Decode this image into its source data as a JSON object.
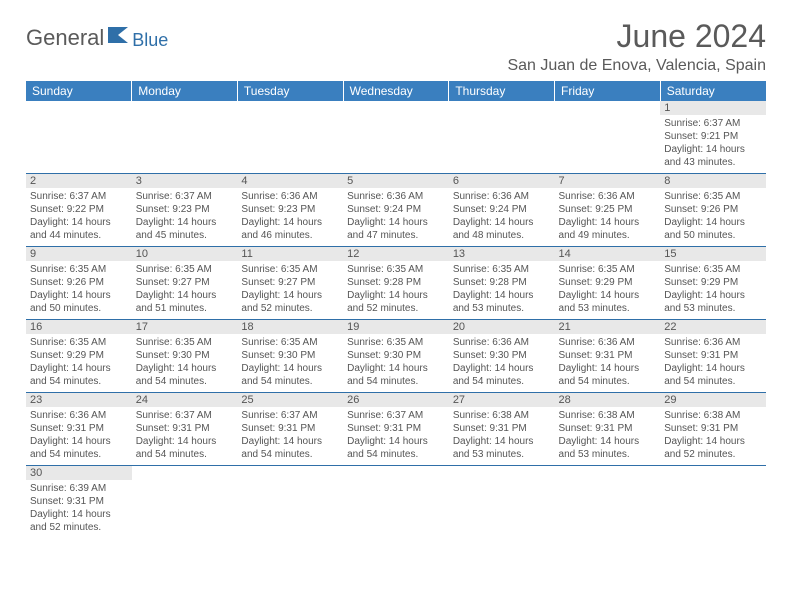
{
  "logo": {
    "part1": "General",
    "part2": "Blue"
  },
  "title": "June 2024",
  "location": "San Juan de Enova, Valencia, Spain",
  "day_headers": [
    "Sunday",
    "Monday",
    "Tuesday",
    "Wednesday",
    "Thursday",
    "Friday",
    "Saturday"
  ],
  "colors": {
    "header_bg": "#3a7fbf",
    "header_text": "#ffffff",
    "rule": "#2f6fa8",
    "daynum_bg": "#e8e8e8",
    "body_text": "#555555",
    "title_text": "#5a5a5a"
  },
  "weeks": [
    [
      null,
      null,
      null,
      null,
      null,
      null,
      {
        "n": "1",
        "sr": "6:37 AM",
        "ss": "9:21 PM",
        "dl": "14 hours and 43 minutes."
      }
    ],
    [
      {
        "n": "2",
        "sr": "6:37 AM",
        "ss": "9:22 PM",
        "dl": "14 hours and 44 minutes."
      },
      {
        "n": "3",
        "sr": "6:37 AM",
        "ss": "9:23 PM",
        "dl": "14 hours and 45 minutes."
      },
      {
        "n": "4",
        "sr": "6:36 AM",
        "ss": "9:23 PM",
        "dl": "14 hours and 46 minutes."
      },
      {
        "n": "5",
        "sr": "6:36 AM",
        "ss": "9:24 PM",
        "dl": "14 hours and 47 minutes."
      },
      {
        "n": "6",
        "sr": "6:36 AM",
        "ss": "9:24 PM",
        "dl": "14 hours and 48 minutes."
      },
      {
        "n": "7",
        "sr": "6:36 AM",
        "ss": "9:25 PM",
        "dl": "14 hours and 49 minutes."
      },
      {
        "n": "8",
        "sr": "6:35 AM",
        "ss": "9:26 PM",
        "dl": "14 hours and 50 minutes."
      }
    ],
    [
      {
        "n": "9",
        "sr": "6:35 AM",
        "ss": "9:26 PM",
        "dl": "14 hours and 50 minutes."
      },
      {
        "n": "10",
        "sr": "6:35 AM",
        "ss": "9:27 PM",
        "dl": "14 hours and 51 minutes."
      },
      {
        "n": "11",
        "sr": "6:35 AM",
        "ss": "9:27 PM",
        "dl": "14 hours and 52 minutes."
      },
      {
        "n": "12",
        "sr": "6:35 AM",
        "ss": "9:28 PM",
        "dl": "14 hours and 52 minutes."
      },
      {
        "n": "13",
        "sr": "6:35 AM",
        "ss": "9:28 PM",
        "dl": "14 hours and 53 minutes."
      },
      {
        "n": "14",
        "sr": "6:35 AM",
        "ss": "9:29 PM",
        "dl": "14 hours and 53 minutes."
      },
      {
        "n": "15",
        "sr": "6:35 AM",
        "ss": "9:29 PM",
        "dl": "14 hours and 53 minutes."
      }
    ],
    [
      {
        "n": "16",
        "sr": "6:35 AM",
        "ss": "9:29 PM",
        "dl": "14 hours and 54 minutes."
      },
      {
        "n": "17",
        "sr": "6:35 AM",
        "ss": "9:30 PM",
        "dl": "14 hours and 54 minutes."
      },
      {
        "n": "18",
        "sr": "6:35 AM",
        "ss": "9:30 PM",
        "dl": "14 hours and 54 minutes."
      },
      {
        "n": "19",
        "sr": "6:35 AM",
        "ss": "9:30 PM",
        "dl": "14 hours and 54 minutes."
      },
      {
        "n": "20",
        "sr": "6:36 AM",
        "ss": "9:30 PM",
        "dl": "14 hours and 54 minutes."
      },
      {
        "n": "21",
        "sr": "6:36 AM",
        "ss": "9:31 PM",
        "dl": "14 hours and 54 minutes."
      },
      {
        "n": "22",
        "sr": "6:36 AM",
        "ss": "9:31 PM",
        "dl": "14 hours and 54 minutes."
      }
    ],
    [
      {
        "n": "23",
        "sr": "6:36 AM",
        "ss": "9:31 PM",
        "dl": "14 hours and 54 minutes."
      },
      {
        "n": "24",
        "sr": "6:37 AM",
        "ss": "9:31 PM",
        "dl": "14 hours and 54 minutes."
      },
      {
        "n": "25",
        "sr": "6:37 AM",
        "ss": "9:31 PM",
        "dl": "14 hours and 54 minutes."
      },
      {
        "n": "26",
        "sr": "6:37 AM",
        "ss": "9:31 PM",
        "dl": "14 hours and 54 minutes."
      },
      {
        "n": "27",
        "sr": "6:38 AM",
        "ss": "9:31 PM",
        "dl": "14 hours and 53 minutes."
      },
      {
        "n": "28",
        "sr": "6:38 AM",
        "ss": "9:31 PM",
        "dl": "14 hours and 53 minutes."
      },
      {
        "n": "29",
        "sr": "6:38 AM",
        "ss": "9:31 PM",
        "dl": "14 hours and 52 minutes."
      }
    ],
    [
      {
        "n": "30",
        "sr": "6:39 AM",
        "ss": "9:31 PM",
        "dl": "14 hours and 52 minutes."
      },
      null,
      null,
      null,
      null,
      null,
      null
    ]
  ],
  "labels": {
    "sunrise": "Sunrise: ",
    "sunset": "Sunset: ",
    "daylight": "Daylight: "
  }
}
